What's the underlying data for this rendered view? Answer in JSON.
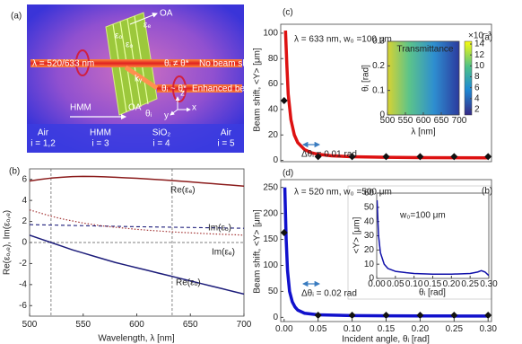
{
  "diagram": {
    "panel_label": "(a)",
    "beam": "λ = 520/633 nm",
    "no_shift": "No beam shift",
    "enhanced": "Enhanced beam shift",
    "cond_no": "θᵢ ≠ θ*",
    "cond_enh": "θᵢ ~ θ*",
    "oa_top": "OA",
    "eps_e": "εₑ",
    "eps_o": "εₒ",
    "k": "kᵧ",
    "hmm": "HMM",
    "oa_bottom": "OA",
    "theta": "θᵢ",
    "axis_x": "x",
    "axis_y": "y",
    "axis_z": "z",
    "layers": [
      {
        "name": "Air",
        "index": "i = 1,2"
      },
      {
        "name": "HMM",
        "index": "i = 3"
      },
      {
        "name": "SiO₂",
        "index": "i = 4"
      },
      {
        "name": "Air",
        "index": "i = 5"
      }
    ]
  },
  "chart_data": [
    {
      "type": "line",
      "panel_label": "(b)",
      "xlabel": "Wavelength, λ [nm]",
      "ylabel": "Re(εₒ,ₑ), Im(εₒ,ₑ)",
      "xlim": [
        500,
        700
      ],
      "ylim": [
        -7,
        7
      ],
      "xticks": [
        500,
        550,
        600,
        650,
        700
      ],
      "yticks": [
        -6,
        -4,
        -2,
        0,
        2,
        4,
        6
      ],
      "vlines": [
        520,
        633
      ],
      "hlines": [
        0
      ],
      "x": [
        500,
        510,
        520,
        530,
        540,
        550,
        560,
        570,
        580,
        590,
        600,
        610,
        620,
        630,
        640,
        650,
        660,
        670,
        680,
        690,
        700
      ],
      "series": [
        {
          "name": "Re(εₑ)",
          "color": "#8b1c1c",
          "style": "solid",
          "values": [
            5.85,
            6.0,
            6.12,
            6.2,
            6.26,
            6.28,
            6.27,
            6.24,
            6.2,
            6.15,
            6.1,
            6.04,
            5.98,
            5.91,
            5.84,
            5.76,
            5.68,
            5.6,
            5.52,
            5.44,
            5.36
          ]
        },
        {
          "name": "Im(εₒ)",
          "color": "#1c1c7a",
          "style": "dashed",
          "values": [
            1.7,
            1.68,
            1.66,
            1.64,
            1.62,
            1.6,
            1.58,
            1.56,
            1.54,
            1.52,
            1.5,
            1.49,
            1.47,
            1.46,
            1.44,
            1.43,
            1.41,
            1.4,
            1.38,
            1.37,
            1.35
          ]
        },
        {
          "name": "Im(εₑ)",
          "color": "#a33333",
          "style": "dotted",
          "values": [
            3.1,
            2.8,
            2.5,
            2.25,
            2.05,
            1.85,
            1.7,
            1.55,
            1.45,
            1.35,
            1.25,
            1.17,
            1.1,
            1.03,
            0.97,
            0.92,
            0.87,
            0.82,
            0.78,
            0.74,
            0.7
          ]
        },
        {
          "name": "Re(εₒ)",
          "color": "#1c1c7a",
          "style": "solid",
          "values": [
            0.7,
            0.35,
            0.0,
            -0.35,
            -0.7,
            -1.0,
            -1.3,
            -1.6,
            -1.9,
            -2.15,
            -2.4,
            -2.65,
            -2.9,
            -3.15,
            -3.4,
            -3.65,
            -3.9,
            -4.15,
            -4.4,
            -4.65,
            -4.9
          ]
        }
      ]
    },
    {
      "type": "line",
      "panel_label": "(c)",
      "corner_label": "(a)",
      "header": "λ = 633 nm, w₀ =100 μm",
      "ylabel": "Beam shift, <Y> [μm]",
      "annotation": "Δθᵢ = 0.01 rad",
      "xlim": [
        -0.005,
        0.305
      ],
      "ylim": [
        -1,
        107
      ],
      "yticks": [
        0,
        20,
        40,
        60,
        80,
        100
      ],
      "series": [
        {
          "color": "#dd1111",
          "style": "thick",
          "x": [
            0.002,
            0.004,
            0.006,
            0.01,
            0.015,
            0.02,
            0.03,
            0.04,
            0.05,
            0.07,
            0.1,
            0.15,
            0.2,
            0.25,
            0.3
          ],
          "values": [
            102,
            75,
            52,
            32,
            20,
            14,
            8.5,
            6,
            4.8,
            3.6,
            2.9,
            2.4,
            2.2,
            2.1,
            2.0
          ]
        },
        {
          "color": "#111111",
          "style": "diamond",
          "x": [
            0,
            0.05,
            0.1,
            0.15,
            0.2,
            0.25,
            0.3
          ],
          "values": [
            47,
            3,
            3,
            3,
            3,
            3,
            3
          ]
        }
      ],
      "inset": {
        "type": "heatmap",
        "title": "Transmittance",
        "xlabel": "λ [nm]",
        "ylabel": "θᵢ [rad]",
        "xlim": [
          500,
          700
        ],
        "ylim": [
          0,
          0.3
        ],
        "xticks": [
          500,
          550,
          600,
          650,
          700
        ],
        "yticks": [
          0,
          0.1,
          0.2,
          0.3
        ],
        "clim": [
          1,
          14.5
        ],
        "cticks": [
          2,
          4,
          6,
          8,
          10,
          12,
          14
        ],
        "cscale": "×10⁻³"
      }
    },
    {
      "type": "line",
      "panel_label": "(d)",
      "corner_label": "(b)",
      "header": "λ = 520 nm, w₀ =500 μm",
      "ylabel": "Beam shift, <Y> [μm]",
      "xlabel": "Incident angle, θᵢ  [rad]",
      "annotation": "Δθᵢ = 0.02 rad",
      "xlim": [
        -0.005,
        0.305
      ],
      "ylim": [
        -8,
        265
      ],
      "xticks": [
        {
          "value": 0,
          "label": "0.00"
        },
        {
          "value": 0.05,
          "label": "0.05"
        },
        {
          "value": 0.1,
          "label": "0.10"
        },
        {
          "value": 0.15,
          "label": "0.15"
        },
        {
          "value": 0.2,
          "label": "0.20"
        },
        {
          "value": 0.25,
          "label": "0.25"
        },
        {
          "value": 0.3,
          "label": "0.30"
        }
      ],
      "yticks": [
        0,
        50,
        100,
        150,
        200,
        250
      ],
      "series": [
        {
          "color": "#1111cc",
          "style": "thick",
          "x": [
            0.001,
            0.003,
            0.005,
            0.008,
            0.012,
            0.016,
            0.02,
            0.03,
            0.05,
            0.1,
            0.15,
            0.2,
            0.25,
            0.3
          ],
          "values": [
            250,
            150,
            90,
            50,
            30,
            20,
            14,
            8,
            5,
            3.5,
            3,
            2.8,
            2.7,
            2.6
          ]
        },
        {
          "color": "#111111",
          "style": "diamond",
          "x": [
            0,
            0.05,
            0.1,
            0.15,
            0.2,
            0.25,
            0.3
          ],
          "values": [
            163,
            4,
            4,
            4,
            4,
            4,
            4
          ]
        }
      ],
      "inset": {
        "type": "line",
        "label": "w₀=100 μm",
        "xlabel": "θᵢ [rad]",
        "ylabel": "<Y> [μm]",
        "xlim": [
          0,
          0.3
        ],
        "ylim": [
          0,
          60
        ],
        "xticks": [
          {
            "value": 0,
            "label": "0.00"
          },
          {
            "value": 0.05,
            "label": "0.05"
          },
          {
            "value": 0.1,
            "label": "0.10"
          },
          {
            "value": 0.15,
            "label": "0.15"
          },
          {
            "value": 0.2,
            "label": "0.20"
          },
          {
            "value": 0.25,
            "label": "0.25"
          },
          {
            "value": 0.3,
            "label": "0.30"
          }
        ],
        "yticks": [
          0,
          10,
          20,
          30,
          40,
          50,
          60
        ],
        "series": [
          {
            "color": "#1111aa",
            "style": "solid",
            "x": [
              0.001,
              0.005,
              0.01,
              0.02,
              0.03,
              0.05,
              0.08,
              0.1,
              0.15,
              0.2,
              0.25,
              0.27,
              0.28,
              0.29,
              0.3
            ],
            "values": [
              55,
              30,
              18,
              10,
              7,
              5,
              4,
              3.5,
              3,
              3,
              3.5,
              4.5,
              5.5,
              4.5,
              2
            ]
          }
        ]
      }
    }
  ]
}
